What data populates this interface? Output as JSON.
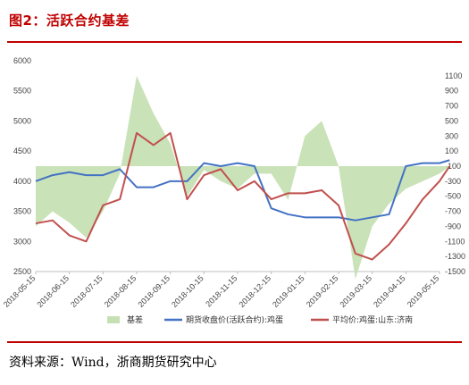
{
  "header": {
    "title": "图2：活跃合约基差"
  },
  "footer": {
    "source": "资料来源：Wind，浙商期货研究中心"
  },
  "colors": {
    "basis": "#c6e0b4",
    "futures": "#4472c4",
    "spot": "#c0504d",
    "accent": "#c00000"
  },
  "chart_data": {
    "type": "line",
    "x_ticks": [
      "2018-05-15",
      "2018-06-15",
      "2018-07-15",
      "2018-08-15",
      "2018-09-15",
      "2018-10-15",
      "2018-11-15",
      "2018-12-15",
      "2019-01-15",
      "2019-02-15",
      "2019-03-15",
      "2019-04-15",
      "2019-05-15"
    ],
    "x": [
      0,
      0.5,
      1,
      1.5,
      2,
      2.5,
      3,
      3.5,
      4,
      4.5,
      5,
      5.5,
      6,
      6.5,
      7,
      7.5,
      8,
      8.5,
      9,
      9.5,
      10,
      10.5,
      11,
      11.5,
      12,
      12.3
    ],
    "y_left": {
      "range": [
        2500,
        6000
      ],
      "ticks": [
        2500,
        3000,
        3500,
        4000,
        4500,
        5000,
        5500,
        6000
      ]
    },
    "y_right": {
      "range": [
        -1500,
        1300
      ],
      "ticks": [
        -1500,
        -1300,
        -1100,
        -900,
        -700,
        -500,
        -300,
        -100,
        100,
        300,
        500,
        700,
        900,
        1100
      ]
    },
    "series": [
      {
        "name": "基差",
        "kind": "area",
        "axis": "right",
        "values": [
          -900,
          -700,
          -850,
          -1050,
          -700,
          -200,
          1100,
          600,
          200,
          -500,
          -150,
          -300,
          -400,
          -200,
          -200,
          -550,
          300,
          500,
          -100,
          -1600,
          -900,
          -600,
          -400,
          -300,
          -200,
          -100
        ]
      },
      {
        "name": "期货收盘价(活跃合约):鸡蛋",
        "kind": "line",
        "axis": "left",
        "values": [
          4000,
          4100,
          4150,
          4100,
          4100,
          4200,
          3900,
          3900,
          4000,
          4000,
          4300,
          4250,
          4300,
          4250,
          3550,
          3450,
          3400,
          3400,
          3400,
          3350,
          3400,
          3450,
          4250,
          4300,
          4300,
          4350
        ]
      },
      {
        "name": "平均价:鸡蛋:山东:济南",
        "kind": "line",
        "axis": "left",
        "values": [
          3300,
          3350,
          3100,
          3000,
          3600,
          3700,
          4800,
          4600,
          4800,
          3700,
          4100,
          4200,
          3850,
          4000,
          3700,
          3800,
          3800,
          3850,
          3600,
          2800,
          2700,
          2950,
          3300,
          3700,
          4000,
          4250
        ]
      }
    ],
    "legend": "bottom"
  }
}
